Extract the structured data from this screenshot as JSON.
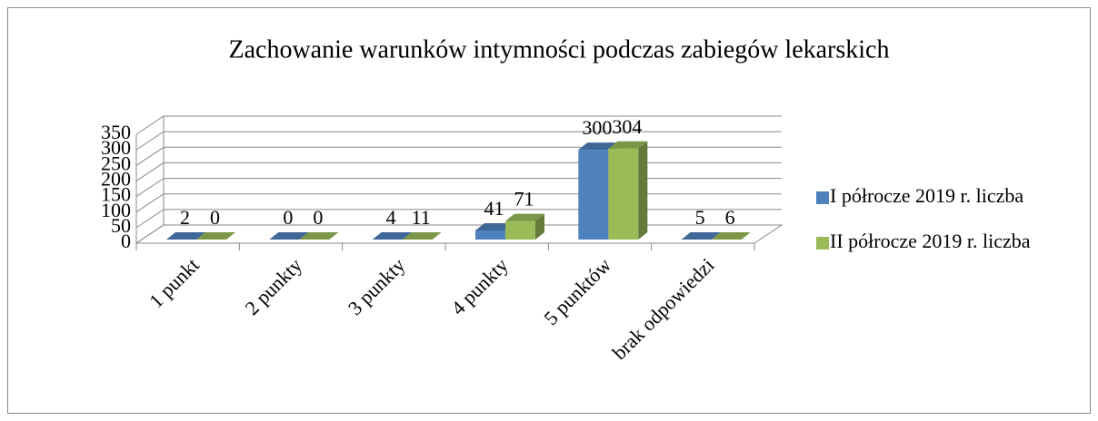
{
  "chart_data": {
    "type": "bar3d",
    "title": "Zachowanie warunków intymności podczas zabiegów lekarskich",
    "categories": [
      "1 punkt",
      "2 punkty",
      "3 punkty",
      "4 punkty",
      "5 punktów",
      "brak odpowiedzi"
    ],
    "series": [
      {
        "name": "I półrocze 2019 r. liczba",
        "color": "#4f81bd",
        "values": [
          2,
          0,
          4,
          41,
          300,
          5
        ]
      },
      {
        "name": "II półrocze 2019 r. liczba",
        "color": "#9bbb59",
        "values": [
          0,
          0,
          11,
          71,
          304,
          6
        ]
      }
    ],
    "ylim": [
      0,
      350
    ],
    "yticks": [
      0,
      50,
      100,
      150,
      200,
      250,
      300,
      350
    ],
    "grid": true,
    "legend": "right"
  }
}
